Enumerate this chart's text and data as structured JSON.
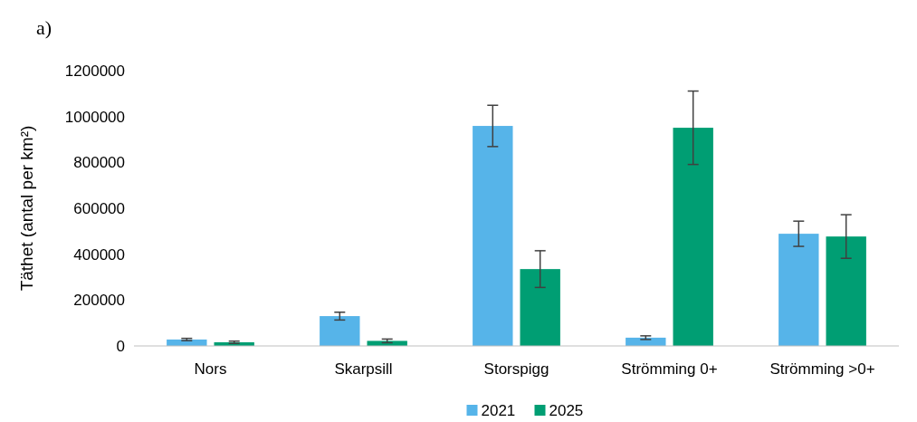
{
  "chart_data": {
    "type": "bar",
    "title": "a)",
    "ylabel": "Täthet (antal per km²)",
    "categories": [
      "Nors",
      "Skarpsill",
      "Storspigg",
      "Strömming 0+",
      "Strömming >0+"
    ],
    "series": [
      {
        "name": "2021",
        "color": "#56b4e9",
        "values": [
          28000,
          130000,
          959000,
          36000,
          489000
        ],
        "errors": [
          5000,
          17000,
          90000,
          8000,
          55000
        ]
      },
      {
        "name": "2025",
        "color": "#009e73",
        "values": [
          16000,
          22000,
          335000,
          951000,
          477000
        ],
        "errors": [
          5000,
          8000,
          80000,
          160000,
          95000
        ]
      }
    ],
    "ylim": [
      0,
      1200000
    ],
    "yticks": [
      0,
      200000,
      400000,
      600000,
      800000,
      1000000,
      1200000
    ],
    "grid": false,
    "legend": "bottom"
  }
}
